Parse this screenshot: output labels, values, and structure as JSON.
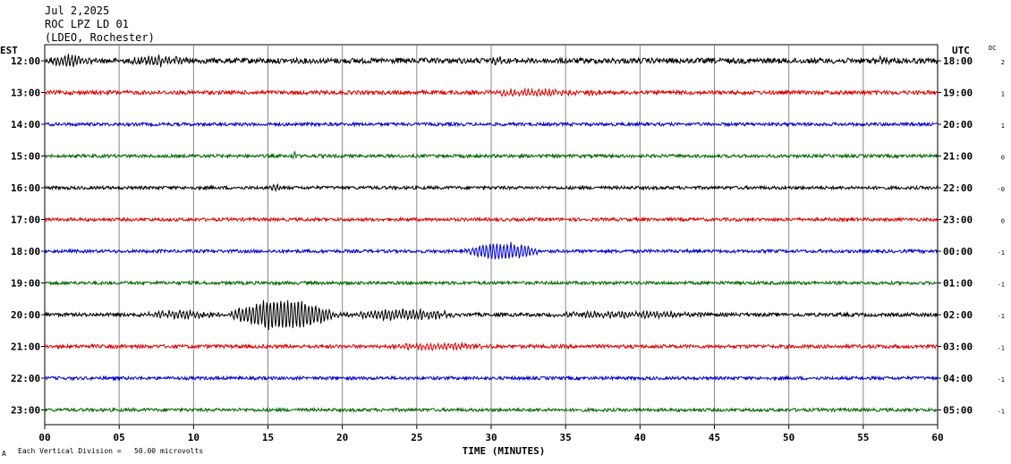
{
  "header": {
    "date": "Jul 2,2025",
    "station": "ROC LPZ LD 01",
    "network": "(LDEO, Rochester)"
  },
  "footer": {
    "scale_note": "Each Vertical Division =   50.00 microvolts",
    "corner_mark": "A"
  },
  "chart_data": {
    "type": "line",
    "title": "",
    "xlabel": "TIME (MINUTES)",
    "left_axis_label": "EST",
    "right_axis_label": "UTC",
    "dc_label": "DC",
    "xlim": [
      0,
      60
    ],
    "x_ticks": [
      "00",
      "05",
      "10",
      "15",
      "20",
      "25",
      "30",
      "35",
      "40",
      "45",
      "50",
      "55",
      "60"
    ],
    "grid": true,
    "trace_colors": [
      "#000000",
      "#dd0000",
      "#0000cc",
      "#006600"
    ],
    "rows": [
      {
        "est": "12:00",
        "utc": "18:00",
        "dc": "2",
        "color": "#000000",
        "noise": 3.0,
        "events": [
          [
            0,
            3.5,
            6
          ],
          [
            5.5,
            10,
            5
          ],
          [
            30,
            31,
            4
          ],
          [
            55.5,
            57,
            3
          ]
        ]
      },
      {
        "est": "13:00",
        "utc": "19:00",
        "dc": "1",
        "color": "#dd0000",
        "noise": 2.2,
        "events": [
          [
            28,
            38,
            3
          ]
        ]
      },
      {
        "est": "14:00",
        "utc": "20:00",
        "dc": "1",
        "color": "#0000cc",
        "noise": 1.8,
        "events": []
      },
      {
        "est": "15:00",
        "utc": "21:00",
        "dc": "0",
        "color": "#006600",
        "noise": 1.8,
        "events": [
          [
            16.6,
            17,
            5
          ]
        ]
      },
      {
        "est": "16:00",
        "utc": "22:00",
        "dc": "-0",
        "color": "#000000",
        "noise": 1.8,
        "events": [
          [
            15,
            16,
            3
          ]
        ]
      },
      {
        "est": "17:00",
        "utc": "23:00",
        "dc": "0",
        "color": "#dd0000",
        "noise": 1.8,
        "events": []
      },
      {
        "est": "18:00",
        "utc": "00:00",
        "dc": "-1",
        "color": "#0000cc",
        "noise": 1.8,
        "events": [
          [
            28,
            33.5,
            10
          ]
        ]
      },
      {
        "est": "19:00",
        "utc": "01:00",
        "dc": "-1",
        "color": "#006600",
        "noise": 1.8,
        "events": []
      },
      {
        "est": "20:00",
        "utc": "02:00",
        "dc": "-1",
        "color": "#000000",
        "noise": 2.0,
        "events": [
          [
            6,
            12,
            4
          ],
          [
            12,
            20,
            17
          ],
          [
            20,
            28,
            6
          ],
          [
            33,
            45,
            3
          ]
        ]
      },
      {
        "est": "21:00",
        "utc": "03:00",
        "dc": "-1",
        "color": "#dd0000",
        "noise": 2.0,
        "events": [
          [
            22,
            31,
            3
          ]
        ]
      },
      {
        "est": "22:00",
        "utc": "04:00",
        "dc": "-1",
        "color": "#0000cc",
        "noise": 1.8,
        "events": []
      },
      {
        "est": "23:00",
        "utc": "05:00",
        "dc": "-1",
        "color": "#006600",
        "noise": 1.8,
        "events": []
      }
    ]
  }
}
